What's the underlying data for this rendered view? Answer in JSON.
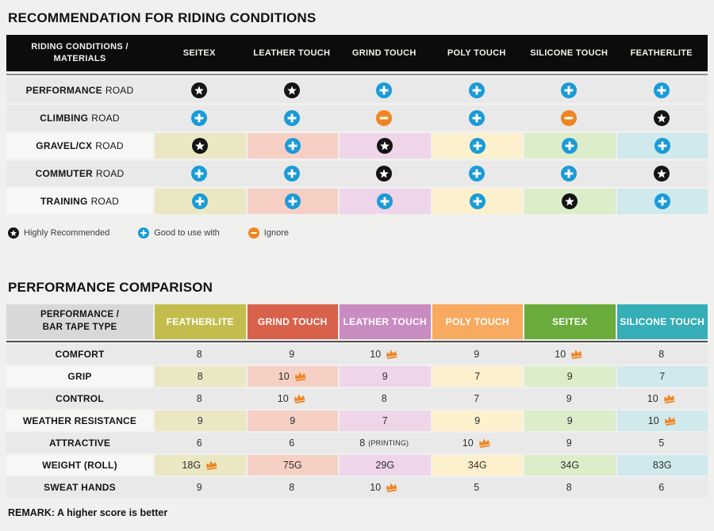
{
  "style": {
    "star_color": "#141414",
    "plus_color": "#1a9bd7",
    "minus_color": "#ef8522",
    "crown_color": "#ef8522",
    "gray_row": "#e9e9e9",
    "table1_header_bg": "#0c0c0c",
    "page_bg": "#f0f0ef"
  },
  "chart_data": [
    {
      "type": "table",
      "title": "RECOMMENDATION FOR RIDING CONDITIONS",
      "corner_header": [
        "RIDING CONDITIONS /",
        "MATERIALS"
      ],
      "columns": [
        "SEITEX",
        "LEATHER TOUCH",
        "GRIND TOUCH",
        "POLY TOUCH",
        "SILICONE TOUCH",
        "FEATHERLITE"
      ],
      "column_tints": [
        "#eae7c2",
        "#f6d0c5",
        "#eed5e9",
        "#fdf0cc",
        "#dcedca",
        "#cfe9ec"
      ],
      "mark_meanings": {
        "star": "Highly Recommended",
        "plus": "Good to use with",
        "minus": "Ignore"
      },
      "rows": [
        {
          "condition": "PERFORMANCE",
          "qualifier": "ROAD",
          "tinted": false,
          "marks": [
            "star",
            "star",
            "plus",
            "plus",
            "plus",
            "plus"
          ]
        },
        {
          "condition": "CLIMBING",
          "qualifier": "ROAD",
          "tinted": false,
          "marks": [
            "plus",
            "plus",
            "minus",
            "plus",
            "minus",
            "star"
          ]
        },
        {
          "condition": "GRAVEL/CX",
          "qualifier": "ROAD",
          "tinted": true,
          "marks": [
            "star",
            "plus",
            "star",
            "plus",
            "plus",
            "plus"
          ]
        },
        {
          "condition": "COMMUTER",
          "qualifier": "ROAD",
          "tinted": false,
          "marks": [
            "plus",
            "plus",
            "star",
            "plus",
            "plus",
            "star"
          ]
        },
        {
          "condition": "TRAINING",
          "qualifier": "ROAD",
          "tinted": true,
          "marks": [
            "plus",
            "plus",
            "plus",
            "plus",
            "star",
            "plus"
          ]
        }
      ],
      "legend": [
        {
          "icon": "star",
          "label": "Highly Recommended"
        },
        {
          "icon": "plus",
          "label": "Good to use with"
        },
        {
          "icon": "minus",
          "label": "Ignore"
        }
      ]
    },
    {
      "type": "table",
      "title": "PERFORMANCE COMPARISON",
      "corner_header": [
        "PERFORMANCE /",
        "BAR TAPE TYPE"
      ],
      "columns": [
        {
          "label": "FEATHERLITE",
          "color": "#c2bd4d",
          "tint": "#eae7c2"
        },
        {
          "label": "GRIND TOUCH",
          "color": "#d8614b",
          "tint": "#f6d0c5"
        },
        {
          "label": "LEATHER TOUCH",
          "color": "#c98cc1",
          "tint": "#eed5e9"
        },
        {
          "label": "POLY TOUCH",
          "color": "#f7aa60",
          "tint": "#fdf0cc"
        },
        {
          "label": "SEITEX",
          "color": "#69ac3c",
          "tint": "#dcedca"
        },
        {
          "label": "SILICONE TOUCH",
          "color": "#35aeb7",
          "tint": "#cfe9ec"
        }
      ],
      "rows": [
        {
          "label": "COMFORT",
          "tinted": false,
          "cells": [
            {
              "v": "8"
            },
            {
              "v": "9"
            },
            {
              "v": "10",
              "crown": true
            },
            {
              "v": "9"
            },
            {
              "v": "10",
              "crown": true
            },
            {
              "v": "8"
            }
          ]
        },
        {
          "label": "GRIP",
          "tinted": true,
          "cells": [
            {
              "v": "8"
            },
            {
              "v": "10",
              "crown": true
            },
            {
              "v": "9"
            },
            {
              "v": "7"
            },
            {
              "v": "9"
            },
            {
              "v": "7"
            }
          ]
        },
        {
          "label": "CONTROL",
          "tinted": false,
          "cells": [
            {
              "v": "8"
            },
            {
              "v": "10",
              "crown": true
            },
            {
              "v": "8"
            },
            {
              "v": "7"
            },
            {
              "v": "9"
            },
            {
              "v": "10",
              "crown": true
            }
          ]
        },
        {
          "label": "WEATHER RESISTANCE",
          "tinted": true,
          "cells": [
            {
              "v": "9"
            },
            {
              "v": "9"
            },
            {
              "v": "7"
            },
            {
              "v": "9"
            },
            {
              "v": "9"
            },
            {
              "v": "10",
              "crown": true
            }
          ]
        },
        {
          "label": "ATTRACTIVE",
          "tinted": false,
          "cells": [
            {
              "v": "6"
            },
            {
              "v": "6"
            },
            {
              "v": "8",
              "note": "(PRINTING)"
            },
            {
              "v": "10",
              "crown": true
            },
            {
              "v": "9"
            },
            {
              "v": "5"
            }
          ]
        },
        {
          "label": "WEIGHT (ROLL)",
          "tinted": true,
          "cells": [
            {
              "v": "18G",
              "crown": true
            },
            {
              "v": "75G"
            },
            {
              "v": "29G"
            },
            {
              "v": "34G"
            },
            {
              "v": "34G"
            },
            {
              "v": "83G"
            }
          ]
        },
        {
          "label": "SWEAT HANDS",
          "tinted": false,
          "cells": [
            {
              "v": "9"
            },
            {
              "v": "8"
            },
            {
              "v": "10",
              "crown": true
            },
            {
              "v": "5"
            },
            {
              "v": "8"
            },
            {
              "v": "6"
            }
          ]
        }
      ],
      "remark": "REMARK: A higher score is better"
    }
  ]
}
